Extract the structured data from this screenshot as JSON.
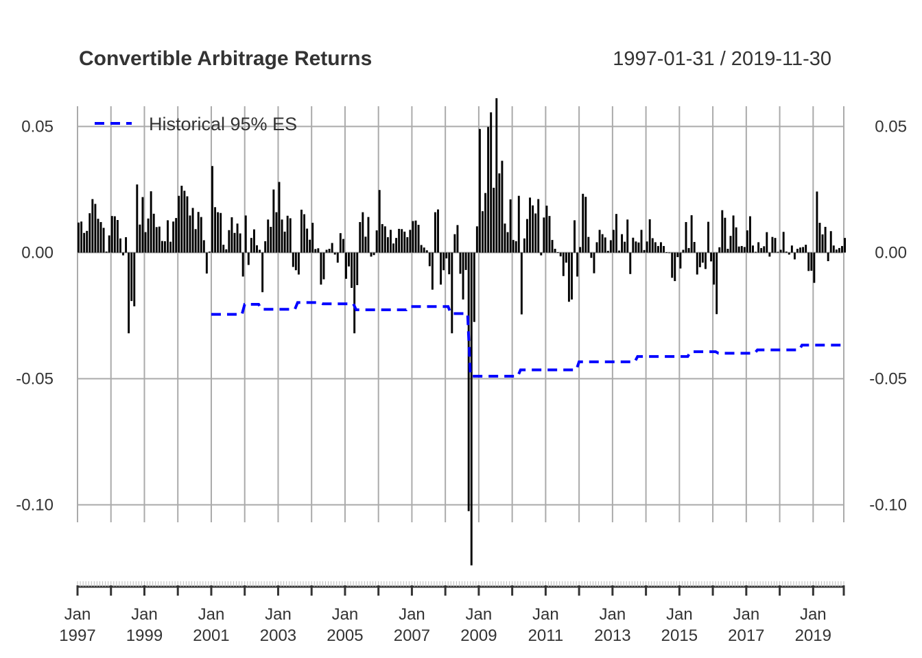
{
  "chart_data": {
    "type": "bar",
    "title": "Convertible Arbitrage Returns",
    "date_range": "1997-01-31 / 2019-11-30",
    "ylim": [
      -0.125,
      0.062
    ],
    "y_ticks": [
      {
        "value": 0.05,
        "label": "0.05"
      },
      {
        "value": 0.0,
        "label": "0.00"
      },
      {
        "value": -0.05,
        "label": "-0.05"
      },
      {
        "value": -0.1,
        "label": "-0.10"
      }
    ],
    "x_ticks": [
      {
        "year": 1997,
        "month": "Jan",
        "label": "1997"
      },
      {
        "year": 1999,
        "month": "Jan",
        "label": "1999"
      },
      {
        "year": 2001,
        "month": "Jan",
        "label": "2001"
      },
      {
        "year": 2003,
        "month": "Jan",
        "label": "2003"
      },
      {
        "year": 2005,
        "month": "Jan",
        "label": "2005"
      },
      {
        "year": 2007,
        "month": "Jan",
        "label": "2007"
      },
      {
        "year": 2009,
        "month": "Jan",
        "label": "2009"
      },
      {
        "year": 2011,
        "month": "Jan",
        "label": "2011"
      },
      {
        "year": 2013,
        "month": "Jan",
        "label": "2013"
      },
      {
        "year": 2015,
        "month": "Jan",
        "label": "2015"
      },
      {
        "year": 2017,
        "month": "Jan",
        "label": "2017"
      },
      {
        "year": 2019,
        "month": "Jan",
        "label": "2019"
      }
    ],
    "grid": true,
    "legend": {
      "position": "top-left",
      "entries": [
        {
          "name": "Historical 95% ES",
          "color": "#0000ff",
          "style": "dashed"
        }
      ]
    },
    "bar_color": "#000000",
    "returns_start": "1997-01",
    "returns": [
      0.0119,
      0.0123,
      0.0078,
      0.0086,
      0.0156,
      0.0212,
      0.0193,
      0.0134,
      0.0121,
      0.0098,
      0.0004,
      0.0068,
      0.0145,
      0.0144,
      0.0129,
      0.0056,
      -0.0011,
      0.0061,
      -0.032,
      -0.0192,
      -0.0213,
      0.027,
      0.0111,
      0.022,
      0.0081,
      0.0135,
      0.0243,
      0.0154,
      0.0101,
      0.0103,
      0.0046,
      0.0045,
      0.0128,
      0.0043,
      0.0123,
      0.0137,
      0.0225,
      0.0265,
      0.0245,
      0.0223,
      0.0147,
      0.0177,
      0.0093,
      0.0161,
      0.0141,
      0.0049,
      -0.0083,
      0.0004,
      0.0343,
      0.018,
      0.016,
      0.0157,
      0.0031,
      0.0013,
      0.0089,
      0.014,
      0.0078,
      0.0115,
      0.0076,
      -0.0095,
      0.0147,
      -0.0049,
      0.0058,
      0.0092,
      0.0029,
      0.0011,
      -0.0157,
      0.0045,
      0.0131,
      0.0102,
      0.025,
      0.016,
      0.028,
      0.0131,
      0.0083,
      0.0146,
      0.0136,
      -0.0057,
      -0.007,
      -0.0087,
      0.017,
      0.0152,
      0.0095,
      0.0051,
      0.0118,
      0.0014,
      0.0017,
      -0.0127,
      -0.0106,
      0.0011,
      0.0015,
      0.0038,
      -0.0008,
      -0.004,
      0.0077,
      0.0054,
      -0.0104,
      -0.0055,
      -0.014,
      -0.032,
      -0.0129,
      0.0121,
      0.016,
      0.0063,
      0.0141,
      -0.0016,
      -0.001,
      0.0088,
      0.0248,
      0.0113,
      0.0104,
      0.0061,
      0.009,
      0.0036,
      0.0058,
      0.0094,
      0.0093,
      0.0083,
      0.0061,
      0.009,
      0.0125,
      0.0127,
      0.011,
      0.003,
      0.002,
      0.0009,
      -0.0054,
      -0.0147,
      0.016,
      0.0171,
      -0.0127,
      -0.007,
      -0.0023,
      -0.0086,
      -0.032,
      0.0073,
      0.0109,
      -0.0084,
      -0.0186,
      -0.0069,
      -0.1025,
      -0.124,
      -0.0275,
      0.0104,
      0.049,
      0.0164,
      0.0236,
      0.0498,
      0.0556,
      0.0257,
      0.0612,
      0.0314,
      0.0364,
      0.0115,
      0.0081,
      0.0211,
      0.005,
      0.0045,
      0.0225,
      -0.0245,
      0.0056,
      0.0133,
      0.0218,
      0.0187,
      0.0155,
      0.0212,
      -0.0011,
      0.0139,
      0.0186,
      0.0145,
      0.005,
      0.0015,
      0.0001,
      -0.0015,
      -0.0093,
      -0.004,
      -0.0195,
      -0.0186,
      0.0128,
      -0.0095,
      0.0022,
      0.0233,
      0.0221,
      0.0062,
      -0.0021,
      -0.0082,
      0.0041,
      0.009,
      0.0073,
      0.006,
      0.0007,
      0.0049,
      0.009,
      0.0153,
      0.0008,
      0.0073,
      0.0043,
      0.0131,
      -0.0085,
      0.0059,
      0.0044,
      0.004,
      0.009,
      0.001,
      0.0044,
      0.0132,
      0.0057,
      0.0041,
      0.0026,
      0.0041,
      0.0026,
      0.0001,
      0.0,
      -0.01,
      -0.0113,
      -0.0018,
      -0.0063,
      0.0011,
      0.0121,
      0.0018,
      0.0148,
      0.0042,
      -0.0087,
      -0.0058,
      -0.004,
      -0.0065,
      0.0122,
      -0.0035,
      -0.0127,
      -0.0244,
      0.0021,
      0.0168,
      0.0138,
      0.0015,
      0.0066,
      0.0147,
      0.01,
      0.0024,
      0.0026,
      0.0022,
      0.0088,
      0.0144,
      0.0028,
      0.0003,
      0.0041,
      0.0018,
      0.0025,
      0.0081,
      -0.0016,
      0.0062,
      0.0058,
      0.0003,
      0.0011,
      0.0082,
      0.0004,
      -0.0008,
      0.0028,
      -0.0027,
      0.0015,
      0.002,
      0.0022,
      0.0031,
      -0.0073,
      -0.0072,
      -0.012,
      0.0242,
      0.0118,
      0.0072,
      0.0102,
      -0.0034,
      0.0085,
      0.0028,
      0.0012,
      0.0018,
      0.0026,
      0.0058
    ],
    "es_series": [
      {
        "from": "2001-01",
        "value": -0.0245
      },
      {
        "from": "2002-01",
        "value": -0.0205
      },
      {
        "from": "2002-07",
        "value": -0.0225
      },
      {
        "from": "2003-08",
        "value": -0.0198
      },
      {
        "from": "2004-05",
        "value": -0.0203
      },
      {
        "from": "2005-05",
        "value": -0.0227
      },
      {
        "from": "2006-12",
        "value": -0.0214
      },
      {
        "from": "2008-03",
        "value": -0.0242
      },
      {
        "from": "2008-10",
        "value": -0.049
      },
      {
        "from": "2010-04",
        "value": -0.0465
      },
      {
        "from": "2012-01",
        "value": -0.0433
      },
      {
        "from": "2013-10",
        "value": -0.0412
      },
      {
        "from": "2015-05",
        "value": -0.0393
      },
      {
        "from": "2016-03",
        "value": -0.0399
      },
      {
        "from": "2017-05",
        "value": -0.0386
      },
      {
        "from": "2018-09",
        "value": -0.0367
      }
    ],
    "es_end": "2019-11"
  }
}
